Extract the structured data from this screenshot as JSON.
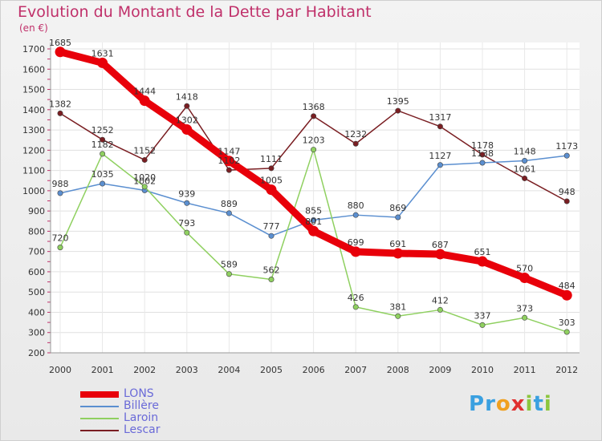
{
  "chart_data": {
    "type": "line",
    "title": "Evolution du Montant de la Dette par Habitant",
    "unit_label": "(en €)",
    "x": [
      "2000",
      "2001",
      "2002",
      "2003",
      "2004",
      "2005",
      "2006",
      "2007",
      "2008",
      "2009",
      "2010",
      "2011",
      "2012"
    ],
    "ylim": [
      200,
      1700
    ],
    "yticks": [
      200,
      300,
      400,
      500,
      600,
      700,
      800,
      900,
      1000,
      1100,
      1200,
      1300,
      1400,
      1500,
      1600,
      1700
    ],
    "grid": true,
    "legend_position": "bottom-left",
    "series": [
      {
        "name": "LONS",
        "color": "#e8000a",
        "values": [
          1685,
          1631,
          1444,
          1302,
          1147,
          1005,
          801,
          699,
          691,
          687,
          651,
          570,
          484
        ]
      },
      {
        "name": "Billère",
        "color": "#5b8fd0",
        "values": [
          988,
          1035,
          1002,
          939,
          889,
          777,
          855,
          880,
          869,
          1127,
          1138,
          1148,
          1173
        ]
      },
      {
        "name": "Laroin",
        "color": "#8fd060",
        "values": [
          720,
          1182,
          1020,
          793,
          589,
          562,
          1203,
          426,
          381,
          412,
          337,
          373,
          303
        ]
      },
      {
        "name": "Lescar",
        "color": "#7a1e22",
        "values": [
          1382,
          1252,
          1152,
          1418,
          1102,
          1111,
          1368,
          1232,
          1395,
          1317,
          1178,
          1061,
          948
        ]
      }
    ]
  },
  "logo": {
    "text": "Proxiti",
    "letters": [
      {
        "ch": "P",
        "color": "#3aa0e0"
      },
      {
        "ch": "r",
        "color": "#3aa0e0"
      },
      {
        "ch": "o",
        "color": "#f0a020"
      },
      {
        "ch": "x",
        "color": "#e03030"
      },
      {
        "ch": "i",
        "color": "#8cc63e"
      },
      {
        "ch": "t",
        "color": "#3aa0e0"
      },
      {
        "ch": "i",
        "color": "#8cc63e"
      }
    ]
  }
}
